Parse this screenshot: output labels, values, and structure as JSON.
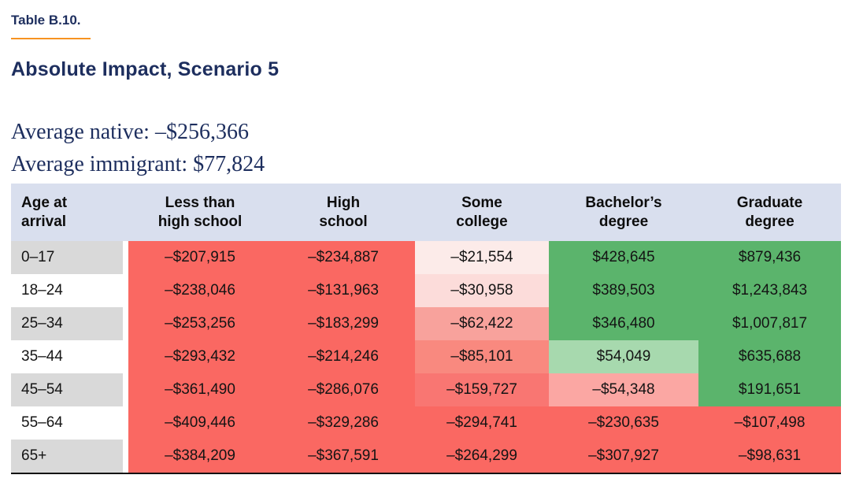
{
  "header": {
    "table_label": "Table B.10.",
    "title": "Absolute Impact, Scenario 5"
  },
  "summary": {
    "average_native": "Average native: –$256,366",
    "average_immigrant": "Average immigrant: $77,824"
  },
  "palette": {
    "red": "#fa6862",
    "red_light": "#f97672",
    "salmon": "#f9897f",
    "pink_mid": "#f8a29c",
    "pink_soft": "#fba7a3",
    "pink_light": "#fcdcda",
    "pink_faint": "#fcebe9",
    "green": "#5bb46c",
    "green_light": "#a7d9ae",
    "header_bg": "#d9dfee",
    "age_gray": "#d9d9d9",
    "age_white": "#ffffff",
    "heading_navy": "#1d2e5e",
    "rule_orange": "#f79321"
  },
  "table": {
    "headers": [
      [
        "Age at",
        "arrival"
      ],
      [
        "Less than",
        "high school"
      ],
      [
        "High",
        "school"
      ],
      [
        "Some",
        "college"
      ],
      [
        "Bachelor’s",
        "degree"
      ],
      [
        "Graduate",
        "degree"
      ]
    ],
    "rows": [
      [
        "0–17",
        "–$207,915",
        "–$234,887",
        "–$21,554",
        "$428,645",
        "$879,436"
      ],
      [
        "18–24",
        "–$238,046",
        "–$131,963",
        "–$30,958",
        "$389,503",
        "$1,243,843"
      ],
      [
        "25–34",
        "–$253,256",
        "–$183,299",
        "–$62,422",
        "$346,480",
        "$1,007,817"
      ],
      [
        "35–44",
        "–$293,432",
        "–$214,246",
        "–$85,101",
        "$54,049",
        "$635,688"
      ],
      [
        "45–54",
        "–$361,490",
        "–$286,076",
        "–$159,727",
        "–$54,348",
        "$191,651"
      ],
      [
        "55–64",
        "–$409,446",
        "–$329,286",
        "–$294,741",
        "–$230,635",
        "–$107,498"
      ],
      [
        "65+",
        "–$384,209",
        "–$367,591",
        "–$264,299",
        "–$307,927",
        "–$98,631"
      ]
    ],
    "cell_colors": [
      [
        "age_gray",
        "red",
        "red",
        "pink_faint",
        "green",
        "green"
      ],
      [
        "age_white",
        "red",
        "red",
        "pink_light",
        "green",
        "green"
      ],
      [
        "age_gray",
        "red",
        "red",
        "pink_mid",
        "green",
        "green"
      ],
      [
        "age_white",
        "red",
        "red",
        "salmon",
        "green_light",
        "green"
      ],
      [
        "age_gray",
        "red",
        "red",
        "red_light",
        "pink_soft",
        "green"
      ],
      [
        "age_white",
        "red",
        "red",
        "red",
        "red",
        "red"
      ],
      [
        "age_gray",
        "red",
        "red",
        "red",
        "red",
        "red"
      ]
    ]
  }
}
